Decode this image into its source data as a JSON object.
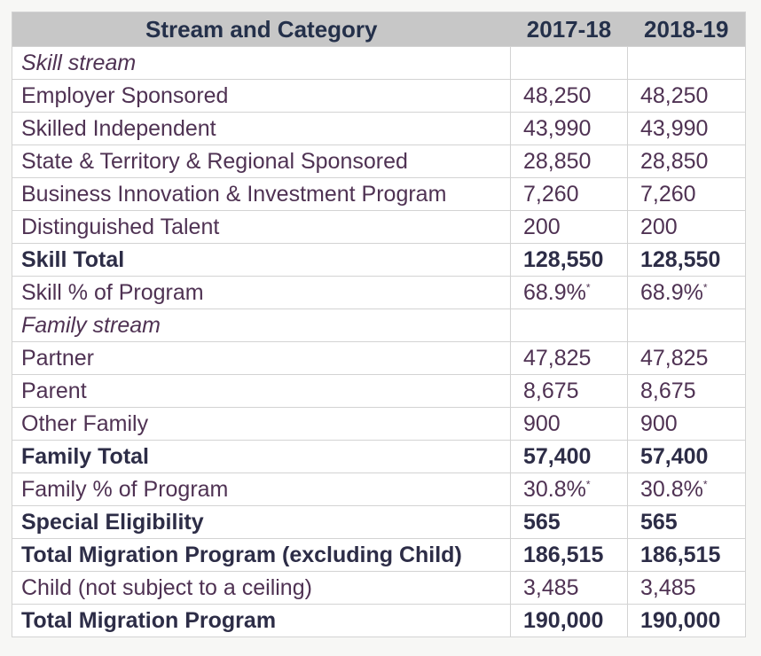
{
  "colors": {
    "page_bg": "#f7f7f5",
    "header_bg": "#c7c7c7",
    "header_text": "#24304a",
    "body_text": "#4f3253",
    "total_text": "#2d2d47",
    "border": "#d3d3d3",
    "cell_bg": "#ffffff"
  },
  "table": {
    "columns": [
      "Stream and Category",
      "2017-18",
      "2018-19"
    ],
    "rows": [
      {
        "label": "Skill stream",
        "style": "section",
        "values": [
          "",
          ""
        ]
      },
      {
        "label": "Employer Sponsored",
        "style": "normal",
        "values": [
          "48,250",
          "48,250"
        ]
      },
      {
        "label": "Skilled Independent",
        "style": "normal",
        "values": [
          "43,990",
          "43,990"
        ]
      },
      {
        "label": "State & Territory & Regional Sponsored",
        "style": "normal",
        "values": [
          "28,850",
          "28,850"
        ]
      },
      {
        "label": "Business Innovation & Investment Program",
        "style": "normal",
        "values": [
          "7,260",
          "7,260"
        ]
      },
      {
        "label": "Distinguished Talent",
        "style": "normal",
        "values": [
          "200",
          "200"
        ]
      },
      {
        "label": "Skill Total",
        "style": "total",
        "values": [
          "128,550",
          "128,550"
        ]
      },
      {
        "label": "Skill % of Program",
        "style": "normal",
        "values": [
          "68.9%",
          "68.9%"
        ],
        "footnote_marker": "*"
      },
      {
        "label": "Family stream",
        "style": "section",
        "values": [
          "",
          ""
        ]
      },
      {
        "label": "Partner",
        "style": "normal",
        "values": [
          "47,825",
          "47,825"
        ]
      },
      {
        "label": "Parent",
        "style": "normal",
        "values": [
          "8,675",
          "8,675"
        ]
      },
      {
        "label": "Other Family",
        "style": "normal",
        "values": [
          "900",
          "900"
        ]
      },
      {
        "label": "Family Total",
        "style": "total",
        "values": [
          "57,400",
          "57,400"
        ]
      },
      {
        "label": "Family % of Program",
        "style": "normal",
        "values": [
          "30.8%",
          "30.8%"
        ],
        "footnote_marker": "*"
      },
      {
        "label": "Special Eligibility",
        "style": "total",
        "values": [
          "565",
          "565"
        ]
      },
      {
        "label": "Total Migration Program (excluding Child)",
        "style": "total",
        "values": [
          "186,515",
          "186,515"
        ]
      },
      {
        "label": "Child (not subject to a ceiling)",
        "style": "normal",
        "values": [
          "3,485",
          "3,485"
        ]
      },
      {
        "label": "Total Migration Program",
        "style": "total",
        "values": [
          "190,000",
          "190,000"
        ]
      }
    ]
  }
}
